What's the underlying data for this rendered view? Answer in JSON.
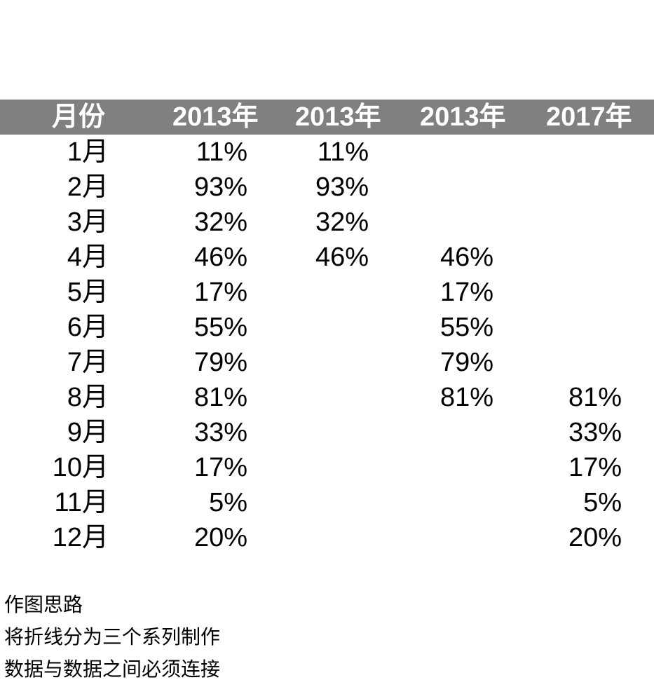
{
  "header": {
    "bg_color": "#808080",
    "text_color": "#ffffff",
    "columns": [
      "月份",
      "2013年",
      "2013年",
      "2013年",
      "2017年"
    ]
  },
  "rows": [
    {
      "month": "1月",
      "a": "11%",
      "b": "11%",
      "c": "",
      "d": ""
    },
    {
      "month": "2月",
      "a": "93%",
      "b": "93%",
      "c": "",
      "d": ""
    },
    {
      "month": "3月",
      "a": "32%",
      "b": "32%",
      "c": "",
      "d": ""
    },
    {
      "month": "4月",
      "a": "46%",
      "b": "46%",
      "c": "46%",
      "d": ""
    },
    {
      "month": "5月",
      "a": "17%",
      "b": "",
      "c": "17%",
      "d": ""
    },
    {
      "month": "6月",
      "a": "55%",
      "b": "",
      "c": "55%",
      "d": ""
    },
    {
      "month": "7月",
      "a": "79%",
      "b": "",
      "c": "79%",
      "d": ""
    },
    {
      "month": "8月",
      "a": "81%",
      "b": "",
      "c": "81%",
      "d": "81%"
    },
    {
      "month": "9月",
      "a": "33%",
      "b": "",
      "c": "",
      "d": "33%"
    },
    {
      "month": "10月",
      "a": "17%",
      "b": "",
      "c": "",
      "d": "17%"
    },
    {
      "month": "11月",
      "a": "5%",
      "b": "",
      "c": "",
      "d": "5%"
    },
    {
      "month": "12月",
      "a": "20%",
      "b": "",
      "c": "",
      "d": "20%"
    }
  ],
  "notes": [
    "作图思路",
    "将折线分为三个系列制作",
    "数据与数据之间必须连接"
  ]
}
